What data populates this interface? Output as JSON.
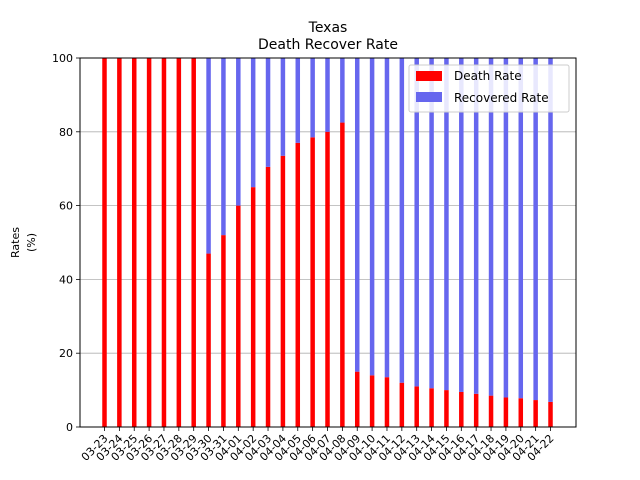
{
  "chart_data": {
    "type": "bar",
    "stacked": true,
    "title": "Texas",
    "subtitle": "Death Recover Rate",
    "xlabel": "",
    "ylabel_line1": "Rates",
    "ylabel_line2": "(%)",
    "ylim": [
      0,
      100
    ],
    "yticks": [
      0,
      20,
      40,
      60,
      80,
      100
    ],
    "grid": "horizontal",
    "legend_position": "top-right",
    "categories": [
      "03-23",
      "03-24",
      "03-25",
      "03-26",
      "03-27",
      "03-28",
      "03-29",
      "03-30",
      "03-31",
      "04-01",
      "04-02",
      "04-03",
      "04-04",
      "04-05",
      "04-06",
      "04-07",
      "04-08",
      "04-09",
      "04-10",
      "04-11",
      "04-12",
      "04-13",
      "04-14",
      "04-15",
      "04-16",
      "04-17",
      "04-18",
      "04-19",
      "04-20",
      "04-21",
      "04-22"
    ],
    "series": [
      {
        "name": "Death Rate",
        "color": "#ff0000",
        "values": [
          100,
          100,
          100,
          100,
          100,
          100,
          100,
          47,
          52,
          60,
          65,
          70.5,
          73.5,
          77,
          78.5,
          80,
          82.5,
          15,
          14,
          13.5,
          12,
          11,
          10.5,
          10,
          9.5,
          9,
          8.5,
          8,
          7.8,
          7.3,
          6.8
        ]
      },
      {
        "name": "Recovered Rate",
        "color": "#6666ee",
        "values": [
          0,
          0,
          0,
          0,
          0,
          0,
          0,
          53,
          48,
          40,
          35,
          29.5,
          26.5,
          23,
          21.5,
          20,
          17.5,
          85,
          86,
          86.5,
          88,
          89,
          89.5,
          90,
          90.5,
          91,
          91.5,
          92,
          92.2,
          92.7,
          93.2
        ]
      }
    ]
  }
}
